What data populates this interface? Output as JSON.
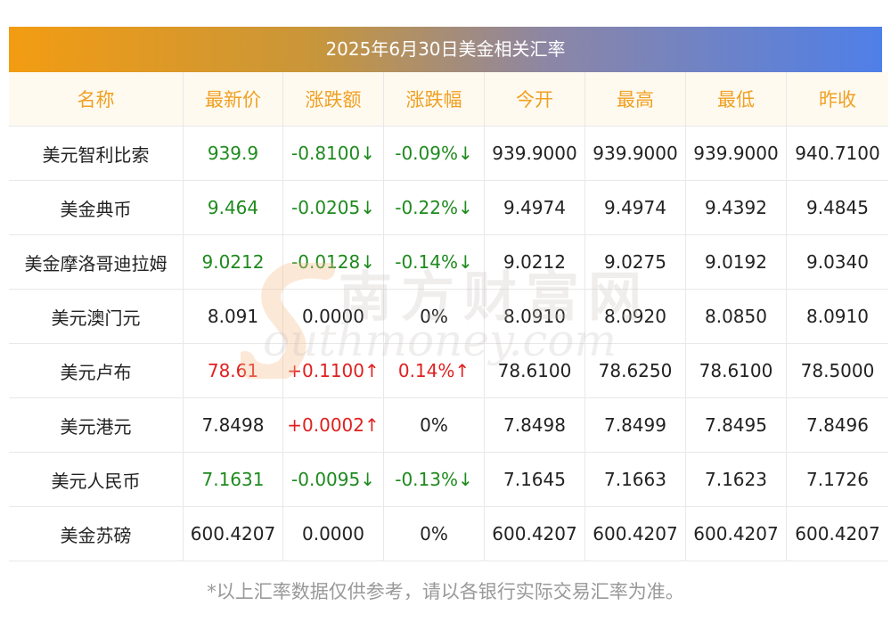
{
  "title": "2025年6月30日美金相关汇率",
  "headers": [
    "名称",
    "最新价",
    "涨跌额",
    "涨跌幅",
    "今开",
    "最高",
    "最低",
    "昨收"
  ],
  "rows": [
    {
      "name": "美元智利比索",
      "latest": "939.9",
      "change": "-0.8100↓",
      "pct": "-0.09%↓",
      "open": "939.9000",
      "high": "939.9000",
      "low": "939.9000",
      "prev": "940.7100",
      "trend": "down"
    },
    {
      "name": "美金典币",
      "latest": "9.464",
      "change": "-0.0205↓",
      "pct": "-0.22%↓",
      "open": "9.4974",
      "high": "9.4974",
      "low": "9.4392",
      "prev": "9.4845",
      "trend": "down"
    },
    {
      "name": "美金摩洛哥迪拉姆",
      "latest": "9.0212",
      "change": "-0.0128↓",
      "pct": "-0.14%↓",
      "open": "9.0212",
      "high": "9.0275",
      "low": "9.0192",
      "prev": "9.0340",
      "trend": "down"
    },
    {
      "name": "美元澳门元",
      "latest": "8.091",
      "change": "0.0000",
      "pct": "0%",
      "open": "8.0910",
      "high": "8.0920",
      "low": "8.0850",
      "prev": "8.0910",
      "trend": "flat"
    },
    {
      "name": "美元卢布",
      "latest": "78.61",
      "change": "+0.1100↑",
      "pct": "0.14%↑",
      "open": "78.6100",
      "high": "78.6250",
      "low": "78.6100",
      "prev": "78.5000",
      "trend": "up"
    },
    {
      "name": "美元港元",
      "latest": "7.8498",
      "change": "+0.0002↑",
      "pct": "0%",
      "open": "7.8498",
      "high": "7.8499",
      "low": "7.8495",
      "prev": "7.8496",
      "trend": "up_change_only"
    },
    {
      "name": "美元人民币",
      "latest": "7.1631",
      "change": "-0.0095↓",
      "pct": "-0.13%↓",
      "open": "7.1645",
      "high": "7.1663",
      "low": "7.1623",
      "prev": "7.1726",
      "trend": "down"
    },
    {
      "name": "美金苏磅",
      "latest": "600.4207",
      "change": "0.0000",
      "pct": "0%",
      "open": "600.4207",
      "high": "600.4207",
      "low": "600.4207",
      "prev": "600.4207",
      "trend": "flat"
    }
  ],
  "footer": "*以上汇率数据仅供参考，请以各银行实际交易汇率为准。",
  "watermark": {
    "zh": "南方财富网",
    "en": "outhmoney.com"
  },
  "colors": {
    "up": "#e02020",
    "down": "#1e8a1e",
    "header_text": "#f0a023",
    "header_bg": "#fffaf0"
  }
}
